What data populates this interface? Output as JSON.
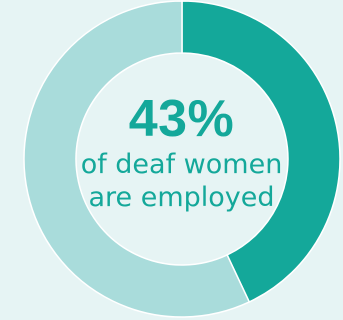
{
  "chart_data": {
    "type": "pie",
    "style": "donut",
    "slices": [
      {
        "value": 43,
        "color": "#14a89a"
      },
      {
        "value": 57,
        "color": "#a9dcdb"
      }
    ],
    "center_label": {
      "value": "43%",
      "line1": "of deaf women",
      "line2": "are employed"
    }
  },
  "colors": {
    "background": "#e6f4f4",
    "accent": "#14a89a",
    "remainder": "#a9dcdb"
  }
}
